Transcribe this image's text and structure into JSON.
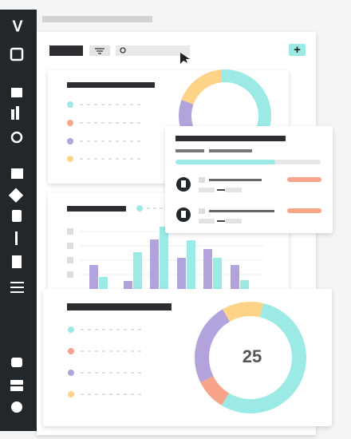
{
  "sidebar": {
    "logo": "V"
  },
  "toolbar": {
    "add_button": "+"
  },
  "top_donut": {
    "values": [
      25,
      18,
      57
    ],
    "colors": [
      "#b3a3dd",
      "#fdd487",
      "#9beae6"
    ]
  },
  "bar_chart": {
    "ylim": [
      0,
      100
    ],
    "series": [
      {
        "color": "#b3a3dd",
        "values": [
          30,
          10,
          62,
          39,
          50,
          30
        ]
      },
      {
        "color": "#9beae6",
        "values": [
          15,
          46,
          78,
          61,
          39,
          11
        ]
      }
    ]
  },
  "front_donut": {
    "center_label": 25,
    "values": [
      12,
      55,
      9,
      24
    ],
    "colors": [
      "#fdd487",
      "#9beae6",
      "#f7a48a",
      "#b3a3dd"
    ]
  }
}
